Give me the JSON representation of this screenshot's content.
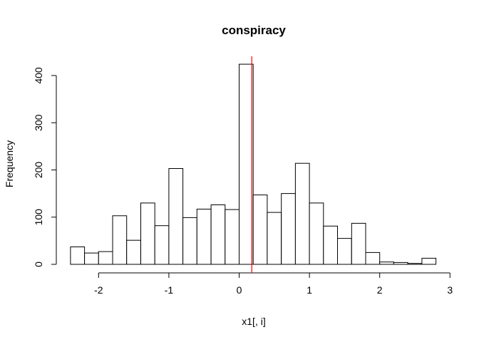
{
  "chart_data": {
    "type": "bar",
    "title": "conspiracy",
    "xlabel": "x1[, i]",
    "ylabel": "Frequency",
    "bin_width": 0.2,
    "bins_start": [
      -2.4,
      -2.2,
      -2.0,
      -1.8,
      -1.6,
      -1.4,
      -1.2,
      -1.0,
      -0.8,
      -0.6,
      -0.4,
      -0.2,
      0.0,
      0.2,
      0.4,
      0.6,
      0.8,
      1.0,
      1.2,
      1.4,
      1.6,
      1.8,
      2.0,
      2.2,
      2.4,
      2.6
    ],
    "values": [
      37,
      24,
      27,
      103,
      51,
      130,
      82,
      203,
      99,
      117,
      126,
      116,
      424,
      147,
      110,
      150,
      214,
      130,
      81,
      55,
      87,
      25,
      5,
      4,
      2,
      13
    ],
    "x_ticks": [
      -2,
      -1,
      0,
      1,
      2,
      3
    ],
    "y_ticks": [
      0,
      100,
      200,
      300,
      400
    ],
    "xlim": [
      -2.4,
      2.8
    ],
    "ylim": [
      0,
      400
    ],
    "reference_line": {
      "x": 0.18,
      "color": "#ff0000"
    },
    "bar_fill": "#ffffff",
    "bar_stroke": "#000000",
    "grid": false
  }
}
